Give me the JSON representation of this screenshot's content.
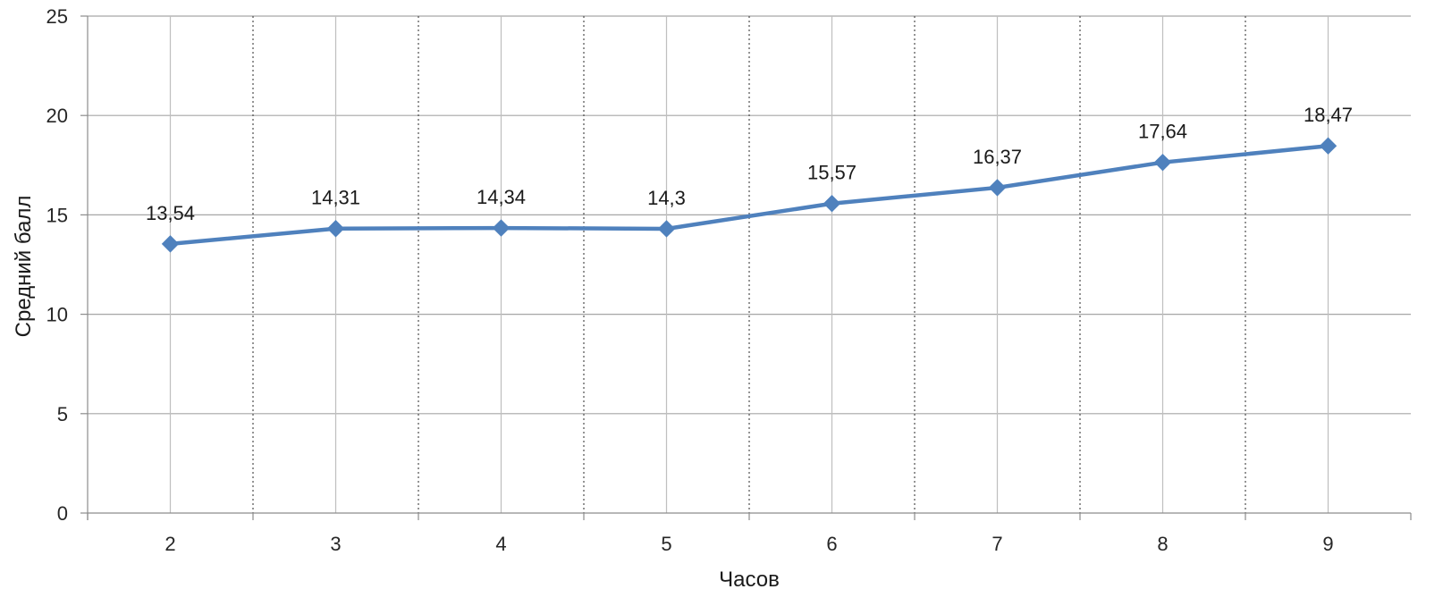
{
  "chart_data": {
    "type": "line",
    "title": "",
    "xlabel": "Часов",
    "ylabel": "Средний балл",
    "categories": [
      "2",
      "3",
      "4",
      "5",
      "6",
      "7",
      "8",
      "9"
    ],
    "series": [
      {
        "values": [
          13.54,
          14.31,
          14.34,
          14.3,
          15.57,
          16.37,
          17.64,
          18.47
        ],
        "labels": [
          "13,54",
          "14,31",
          "14,34",
          "14,3",
          "15,57",
          "16,37",
          "17,64",
          "18,47"
        ],
        "color": "#4F81BD",
        "marker": "diamond"
      }
    ],
    "yticks": [
      "0",
      "5",
      "10",
      "15",
      "20",
      "25"
    ],
    "ylim": [
      0,
      25
    ],
    "grid": {
      "horizontal": true,
      "vertical_major": true,
      "vertical_minor_dotted": true
    },
    "legend": "none"
  }
}
